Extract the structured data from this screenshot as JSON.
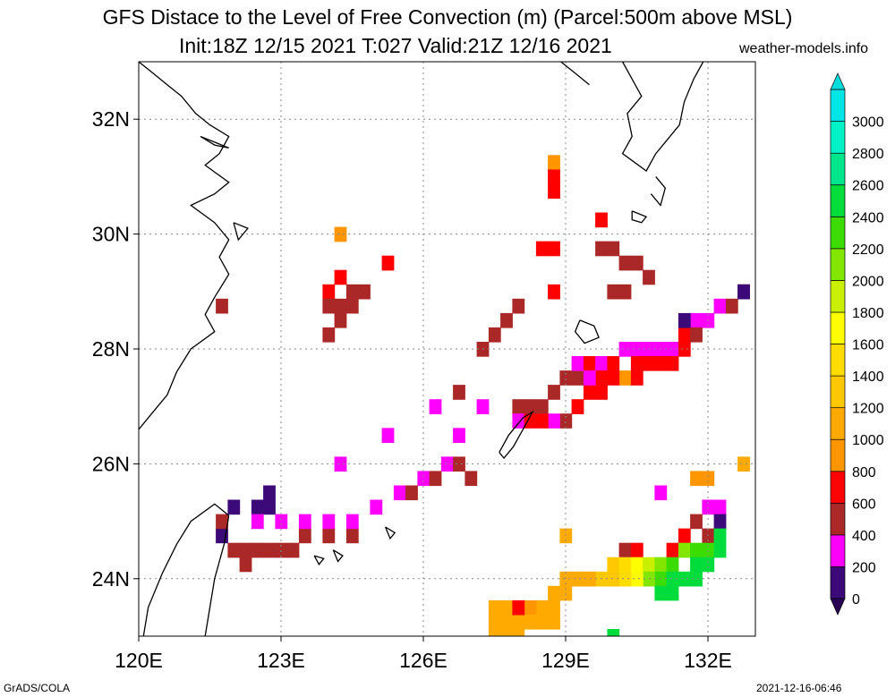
{
  "title": {
    "line1": "GFS Distace to the Level of Free Convection (m) (Parcel:500m above MSL)",
    "line2": "Init:18Z 12/15 2021 T:027 Valid:21Z 12/16 2021",
    "site": "weather-models.info"
  },
  "footer": {
    "left": "GrADS/COLA",
    "right": "2021-12-16-06:46"
  },
  "map": {
    "lon_range": [
      120,
      133
    ],
    "lat_range": [
      23,
      33
    ],
    "lon_ticks": [
      {
        "v": 120,
        "label": "120E"
      },
      {
        "v": 123,
        "label": "123E"
      },
      {
        "v": 126,
        "label": "126E"
      },
      {
        "v": 129,
        "label": "129E"
      },
      {
        "v": 132,
        "label": "132E"
      }
    ],
    "lat_ticks": [
      {
        "v": 24,
        "label": "24N"
      },
      {
        "v": 26,
        "label": "26N"
      },
      {
        "v": 28,
        "label": "28N"
      },
      {
        "v": 30,
        "label": "30N"
      },
      {
        "v": 32,
        "label": "32N"
      }
    ],
    "grid": true,
    "coastline_color": "#000000"
  },
  "colorbar": {
    "levels": [
      {
        "label": "0",
        "color": "#3c0a78"
      },
      {
        "label": "200",
        "color": "#ff00ff"
      },
      {
        "label": "400",
        "color": "#aa2828"
      },
      {
        "label": "600",
        "color": "#ff0000"
      },
      {
        "label": "800",
        "color": "#ff9600"
      },
      {
        "label": "1000",
        "color": "#ffaa00"
      },
      {
        "label": "1200",
        "color": "#ffc800"
      },
      {
        "label": "1400",
        "color": "#ffdc00"
      },
      {
        "label": "1600",
        "color": "#ffff00"
      },
      {
        "label": "1800",
        "color": "#c8f000"
      },
      {
        "label": "2000",
        "color": "#82e600"
      },
      {
        "label": "2200",
        "color": "#3cdc00"
      },
      {
        "label": "2400",
        "color": "#00dc3c"
      },
      {
        "label": "2600",
        "color": "#00e68c"
      },
      {
        "label": "2800",
        "color": "#00f0c8"
      },
      {
        "label": "3000",
        "color": "#00e6e6"
      }
    ],
    "lower_arrow_color": "#2a0055",
    "upper_arrow_color": "#00dcdc"
  },
  "field_cells": [
    {
      "lon": 121.75,
      "lat": 24.75,
      "value": 0
    },
    {
      "lon": 122.0,
      "lat": 25.25,
      "value": 0
    },
    {
      "lon": 122.5,
      "lat": 25.25,
      "value": 0
    },
    {
      "lon": 122.75,
      "lat": 25.5,
      "value": 0
    },
    {
      "lon": 122.75,
      "lat": 25.25,
      "value": 0
    },
    {
      "lon": 121.75,
      "lat": 25.0,
      "value": 400
    },
    {
      "lon": 122.0,
      "lat": 24.5,
      "value": 400
    },
    {
      "lon": 122.25,
      "lat": 24.5,
      "value": 400
    },
    {
      "lon": 122.5,
      "lat": 24.5,
      "value": 400
    },
    {
      "lon": 122.75,
      "lat": 24.5,
      "value": 400
    },
    {
      "lon": 123.0,
      "lat": 24.5,
      "value": 400
    },
    {
      "lon": 123.25,
      "lat": 24.5,
      "value": 400
    },
    {
      "lon": 123.5,
      "lat": 24.75,
      "value": 400
    },
    {
      "lon": 122.25,
      "lat": 24.25,
      "value": 400
    },
    {
      "lon": 124.0,
      "lat": 24.75,
      "value": 400
    },
    {
      "lon": 124.5,
      "lat": 24.75,
      "value": 400
    },
    {
      "lon": 122.5,
      "lat": 25.0,
      "value": 200
    },
    {
      "lon": 123.0,
      "lat": 25.0,
      "value": 200
    },
    {
      "lon": 123.5,
      "lat": 25.0,
      "value": 200
    },
    {
      "lon": 124.0,
      "lat": 25.0,
      "value": 200
    },
    {
      "lon": 124.5,
      "lat": 25.0,
      "value": 200
    },
    {
      "lon": 125.0,
      "lat": 25.25,
      "value": 200
    },
    {
      "lon": 125.5,
      "lat": 25.5,
      "value": 200
    },
    {
      "lon": 126.0,
      "lat": 25.75,
      "value": 200
    },
    {
      "lon": 126.5,
      "lat": 26.0,
      "value": 200
    },
    {
      "lon": 126.75,
      "lat": 26.5,
      "value": 200
    },
    {
      "lon": 124.25,
      "lat": 26.0,
      "value": 200
    },
    {
      "lon": 125.25,
      "lat": 26.5,
      "value": 200
    },
    {
      "lon": 121.75,
      "lat": 28.75,
      "value": 400
    },
    {
      "lon": 126.75,
      "lat": 26.0,
      "value": 400
    },
    {
      "lon": 127.0,
      "lat": 25.75,
      "value": 400
    },
    {
      "lon": 126.25,
      "lat": 25.75,
      "value": 400
    },
    {
      "lon": 125.75,
      "lat": 25.5,
      "value": 400
    },
    {
      "lon": 124.25,
      "lat": 30.0,
      "value": 800
    },
    {
      "lon": 124.0,
      "lat": 29.0,
      "value": 600
    },
    {
      "lon": 124.25,
      "lat": 29.25,
      "value": 600
    },
    {
      "lon": 125.25,
      "lat": 29.5,
      "value": 600
    },
    {
      "lon": 124.0,
      "lat": 28.75,
      "value": 400
    },
    {
      "lon": 124.25,
      "lat": 28.75,
      "value": 400
    },
    {
      "lon": 124.5,
      "lat": 29.0,
      "value": 400
    },
    {
      "lon": 124.75,
      "lat": 29.0,
      "value": 400
    },
    {
      "lon": 124.25,
      "lat": 28.5,
      "value": 400
    },
    {
      "lon": 124.5,
      "lat": 28.75,
      "value": 400
    },
    {
      "lon": 124.0,
      "lat": 28.25,
      "value": 400
    },
    {
      "lon": 128.75,
      "lat": 31.25,
      "value": 800
    },
    {
      "lon": 128.75,
      "lat": 31.0,
      "value": 600
    },
    {
      "lon": 128.75,
      "lat": 30.75,
      "value": 600
    },
    {
      "lon": 128.5,
      "lat": 29.75,
      "value": 600
    },
    {
      "lon": 128.75,
      "lat": 29.75,
      "value": 600
    },
    {
      "lon": 128.75,
      "lat": 29.0,
      "value": 600
    },
    {
      "lon": 129.75,
      "lat": 30.25,
      "value": 600
    },
    {
      "lon": 129.75,
      "lat": 29.75,
      "value": 400
    },
    {
      "lon": 130.0,
      "lat": 29.75,
      "value": 400
    },
    {
      "lon": 130.25,
      "lat": 29.5,
      "value": 400
    },
    {
      "lon": 130.5,
      "lat": 29.5,
      "value": 400
    },
    {
      "lon": 130.75,
      "lat": 29.25,
      "value": 400
    },
    {
      "lon": 130.0,
      "lat": 29.0,
      "value": 400
    },
    {
      "lon": 130.25,
      "lat": 29.0,
      "value": 400
    },
    {
      "lon": 128.0,
      "lat": 28.75,
      "value": 400
    },
    {
      "lon": 127.75,
      "lat": 28.5,
      "value": 400
    },
    {
      "lon": 127.5,
      "lat": 28.25,
      "value": 400
    },
    {
      "lon": 127.25,
      "lat": 28.0,
      "value": 400
    },
    {
      "lon": 126.75,
      "lat": 27.25,
      "value": 400
    },
    {
      "lon": 127.25,
      "lat": 27.0,
      "value": 200
    },
    {
      "lon": 126.25,
      "lat": 27.0,
      "value": 200
    },
    {
      "lon": 128.0,
      "lat": 27.0,
      "value": 400
    },
    {
      "lon": 128.25,
      "lat": 27.0,
      "value": 400
    },
    {
      "lon": 128.5,
      "lat": 27.0,
      "value": 400
    },
    {
      "lon": 128.75,
      "lat": 27.25,
      "value": 400
    },
    {
      "lon": 129.0,
      "lat": 27.5,
      "value": 400
    },
    {
      "lon": 129.25,
      "lat": 27.5,
      "value": 400
    },
    {
      "lon": 129.25,
      "lat": 27.0,
      "value": 600
    },
    {
      "lon": 129.0,
      "lat": 26.75,
      "value": 400
    },
    {
      "lon": 128.0,
      "lat": 26.75,
      "value": 200
    },
    {
      "lon": 128.75,
      "lat": 26.75,
      "value": 200
    },
    {
      "lon": 129.25,
      "lat": 27.75,
      "value": 200
    },
    {
      "lon": 129.5,
      "lat": 27.75,
      "value": 600
    },
    {
      "lon": 129.75,
      "lat": 27.75,
      "value": 200
    },
    {
      "lon": 130.0,
      "lat": 27.75,
      "value": 600
    },
    {
      "lon": 130.25,
      "lat": 28.0,
      "value": 200
    },
    {
      "lon": 130.5,
      "lat": 28.0,
      "value": 200
    },
    {
      "lon": 130.75,
      "lat": 28.0,
      "value": 200
    },
    {
      "lon": 131.0,
      "lat": 28.0,
      "value": 200
    },
    {
      "lon": 131.25,
      "lat": 28.0,
      "value": 200
    },
    {
      "lon": 131.5,
      "lat": 28.25,
      "value": 600
    },
    {
      "lon": 131.75,
      "lat": 28.5,
      "value": 200
    },
    {
      "lon": 132.0,
      "lat": 28.5,
      "value": 200
    },
    {
      "lon": 132.25,
      "lat": 28.75,
      "value": 200
    },
    {
      "lon": 132.5,
      "lat": 28.75,
      "value": 400
    },
    {
      "lon": 132.75,
      "lat": 29.0,
      "value": 400
    },
    {
      "lon": 130.5,
      "lat": 27.75,
      "value": 600
    },
    {
      "lon": 130.75,
      "lat": 27.75,
      "value": 600
    },
    {
      "lon": 131.0,
      "lat": 27.75,
      "value": 600
    },
    {
      "lon": 131.25,
      "lat": 27.75,
      "value": 600
    },
    {
      "lon": 131.5,
      "lat": 28.0,
      "value": 600
    },
    {
      "lon": 131.75,
      "lat": 28.25,
      "value": 400
    },
    {
      "lon": 130.25,
      "lat": 27.5,
      "value": 800
    },
    {
      "lon": 130.5,
      "lat": 27.5,
      "value": 600
    },
    {
      "lon": 132.75,
      "lat": 29.0,
      "value": 0
    },
    {
      "lon": 131.5,
      "lat": 28.5,
      "value": 0
    },
    {
      "lon": 129.75,
      "lat": 27.5,
      "value": 600
    },
    {
      "lon": 130.0,
      "lat": 27.5,
      "value": 600
    },
    {
      "lon": 129.5,
      "lat": 27.25,
      "value": 600
    },
    {
      "lon": 129.75,
      "lat": 27.25,
      "value": 600
    },
    {
      "lon": 128.25,
      "lat": 26.75,
      "value": 600
    },
    {
      "lon": 128.5,
      "lat": 26.75,
      "value": 600
    },
    {
      "lon": 129.5,
      "lat": 27.5,
      "value": 200
    },
    {
      "lon": 132.0,
      "lat": 25.25,
      "value": 200
    },
    {
      "lon": 132.25,
      "lat": 25.25,
      "value": 200
    },
    {
      "lon": 132.25,
      "lat": 25.0,
      "value": 0
    },
    {
      "lon": 131.75,
      "lat": 25.0,
      "value": 400
    },
    {
      "lon": 132.0,
      "lat": 24.75,
      "value": 400
    },
    {
      "lon": 131.5,
      "lat": 24.75,
      "value": 600
    },
    {
      "lon": 131.25,
      "lat": 24.5,
      "value": 600
    },
    {
      "lon": 130.25,
      "lat": 24.5,
      "value": 400
    },
    {
      "lon": 130.5,
      "lat": 24.5,
      "value": 600
    },
    {
      "lon": 131.75,
      "lat": 25.75,
      "value": 800
    },
    {
      "lon": 132.0,
      "lat": 25.75,
      "value": 800
    },
    {
      "lon": 132.75,
      "lat": 26.0,
      "value": 1000
    },
    {
      "lon": 131.0,
      "lat": 25.5,
      "value": 200
    },
    {
      "lon": 129.0,
      "lat": 24.75,
      "value": 1000
    },
    {
      "lon": 130.0,
      "lat": 24.25,
      "value": 1200
    },
    {
      "lon": 130.25,
      "lat": 24.25,
      "value": 1400
    },
    {
      "lon": 130.5,
      "lat": 24.25,
      "value": 1600
    },
    {
      "lon": 130.75,
      "lat": 24.25,
      "value": 1800
    },
    {
      "lon": 131.0,
      "lat": 24.25,
      "value": 2000
    },
    {
      "lon": 131.25,
      "lat": 24.25,
      "value": 2200
    },
    {
      "lon": 131.5,
      "lat": 24.5,
      "value": 2000
    },
    {
      "lon": 131.75,
      "lat": 24.5,
      "value": 2200
    },
    {
      "lon": 132.0,
      "lat": 24.5,
      "value": 2200
    },
    {
      "lon": 132.25,
      "lat": 24.75,
      "value": 2400
    },
    {
      "lon": 132.25,
      "lat": 24.5,
      "value": 2400
    },
    {
      "lon": 131.75,
      "lat": 24.25,
      "value": 2400
    },
    {
      "lon": 132.0,
      "lat": 24.25,
      "value": 2400
    },
    {
      "lon": 131.5,
      "lat": 24.0,
      "value": 2400
    },
    {
      "lon": 131.75,
      "lat": 24.0,
      "value": 2400
    },
    {
      "lon": 131.0,
      "lat": 24.0,
      "value": 2200
    },
    {
      "lon": 131.25,
      "lat": 24.0,
      "value": 2400
    },
    {
      "lon": 130.75,
      "lat": 24.0,
      "value": 2000
    },
    {
      "lon": 131.0,
      "lat": 23.75,
      "value": 2400
    },
    {
      "lon": 131.25,
      "lat": 23.75,
      "value": 2400
    },
    {
      "lon": 130.5,
      "lat": 24.0,
      "value": 1600
    },
    {
      "lon": 130.25,
      "lat": 24.0,
      "value": 1400
    },
    {
      "lon": 130.0,
      "lat": 24.0,
      "value": 1200
    },
    {
      "lon": 129.75,
      "lat": 24.0,
      "value": 1200
    },
    {
      "lon": 129.5,
      "lat": 24.0,
      "value": 1000
    },
    {
      "lon": 129.25,
      "lat": 24.0,
      "value": 1000
    },
    {
      "lon": 129.0,
      "lat": 24.0,
      "value": 1000
    },
    {
      "lon": 129.0,
      "lat": 23.75,
      "value": 1000
    },
    {
      "lon": 128.75,
      "lat": 23.75,
      "value": 1000
    },
    {
      "lon": 128.75,
      "lat": 23.5,
      "value": 1000
    },
    {
      "lon": 128.5,
      "lat": 23.5,
      "value": 1000
    },
    {
      "lon": 128.25,
      "lat": 23.5,
      "value": 800
    },
    {
      "lon": 128.25,
      "lat": 23.25,
      "value": 1000
    },
    {
      "lon": 128.5,
      "lat": 23.25,
      "value": 1000
    },
    {
      "lon": 128.75,
      "lat": 23.25,
      "value": 1000
    },
    {
      "lon": 128.0,
      "lat": 23.25,
      "value": 1000
    },
    {
      "lon": 127.75,
      "lat": 23.25,
      "value": 1000
    },
    {
      "lon": 127.5,
      "lat": 23.25,
      "value": 1000
    },
    {
      "lon": 127.5,
      "lat": 23.0,
      "value": 1000
    },
    {
      "lon": 127.75,
      "lat": 23.0,
      "value": 1000
    },
    {
      "lon": 128.0,
      "lat": 23.0,
      "value": 1000
    },
    {
      "lon": 127.75,
      "lat": 23.5,
      "value": 1000
    },
    {
      "lon": 128.0,
      "lat": 23.5,
      "value": 600
    },
    {
      "lon": 127.5,
      "lat": 23.5,
      "value": 1000
    },
    {
      "lon": 130.0,
      "lat": 23.0,
      "value": 2400
    }
  ]
}
